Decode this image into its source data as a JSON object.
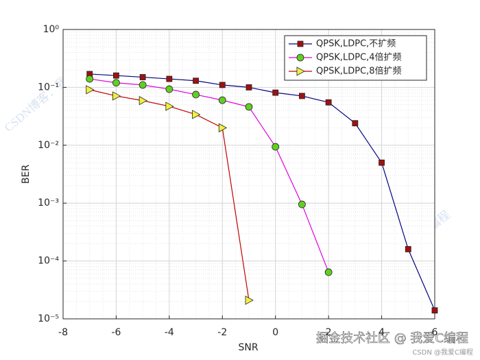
{
  "chart_data": {
    "type": "line",
    "xlabel": "SNR",
    "ylabel": "BER",
    "x": [
      -7,
      -6,
      -5,
      -4,
      -3,
      -2,
      -1,
      0,
      1,
      2,
      3,
      4,
      5,
      6
    ],
    "series": [
      {
        "name": "QPSK,LDPC,不扩频",
        "color": "#000080",
        "marker": "square",
        "marker_color": "#a01010",
        "values": [
          0.17,
          0.16,
          0.15,
          0.14,
          0.13,
          0.11,
          0.1,
          0.081,
          0.071,
          0.055,
          0.024,
          0.005,
          0.00016,
          1.4e-05
        ]
      },
      {
        "name": "QPSK,LDPC,4倍扩频",
        "color": "#e000e0",
        "marker": "circle",
        "marker_color": "#60d020",
        "values": [
          0.14,
          0.12,
          0.11,
          0.093,
          0.075,
          0.06,
          0.046,
          0.0094,
          0.00095,
          6.4e-05,
          null,
          null,
          null,
          null
        ]
      },
      {
        "name": "QPSK,LDPC,8倍扩频",
        "color": "#c00000",
        "marker": "triangle-right",
        "marker_color": "#f0f040",
        "values": [
          0.091,
          0.071,
          0.059,
          0.047,
          0.034,
          0.02,
          2.1e-05,
          null,
          null,
          null,
          null,
          null,
          null,
          null
        ]
      }
    ],
    "xlim": [
      -8,
      6
    ],
    "xticks": [
      -8,
      -6,
      -4,
      -2,
      0,
      2,
      4,
      6
    ],
    "ylim": [
      1e-05,
      1
    ],
    "log_y": true,
    "yticks": [
      {
        "value": 1e-05,
        "label": "10⁻⁵"
      },
      {
        "value": 0.0001,
        "label": "10⁻⁴"
      },
      {
        "value": 0.001,
        "label": "10⁻³"
      },
      {
        "value": 0.01,
        "label": "10⁻²"
      },
      {
        "value": 0.1,
        "label": "10⁻¹"
      },
      {
        "value": 1,
        "label": "10⁰"
      }
    ],
    "grid": true,
    "minor_grid": true,
    "legend": "top-right",
    "watermark": "CSDN博客：我爱C编程",
    "footer": "掘金技术社区 @ 我爱C编程",
    "footer_small": "CSDN @我爱C编程"
  }
}
